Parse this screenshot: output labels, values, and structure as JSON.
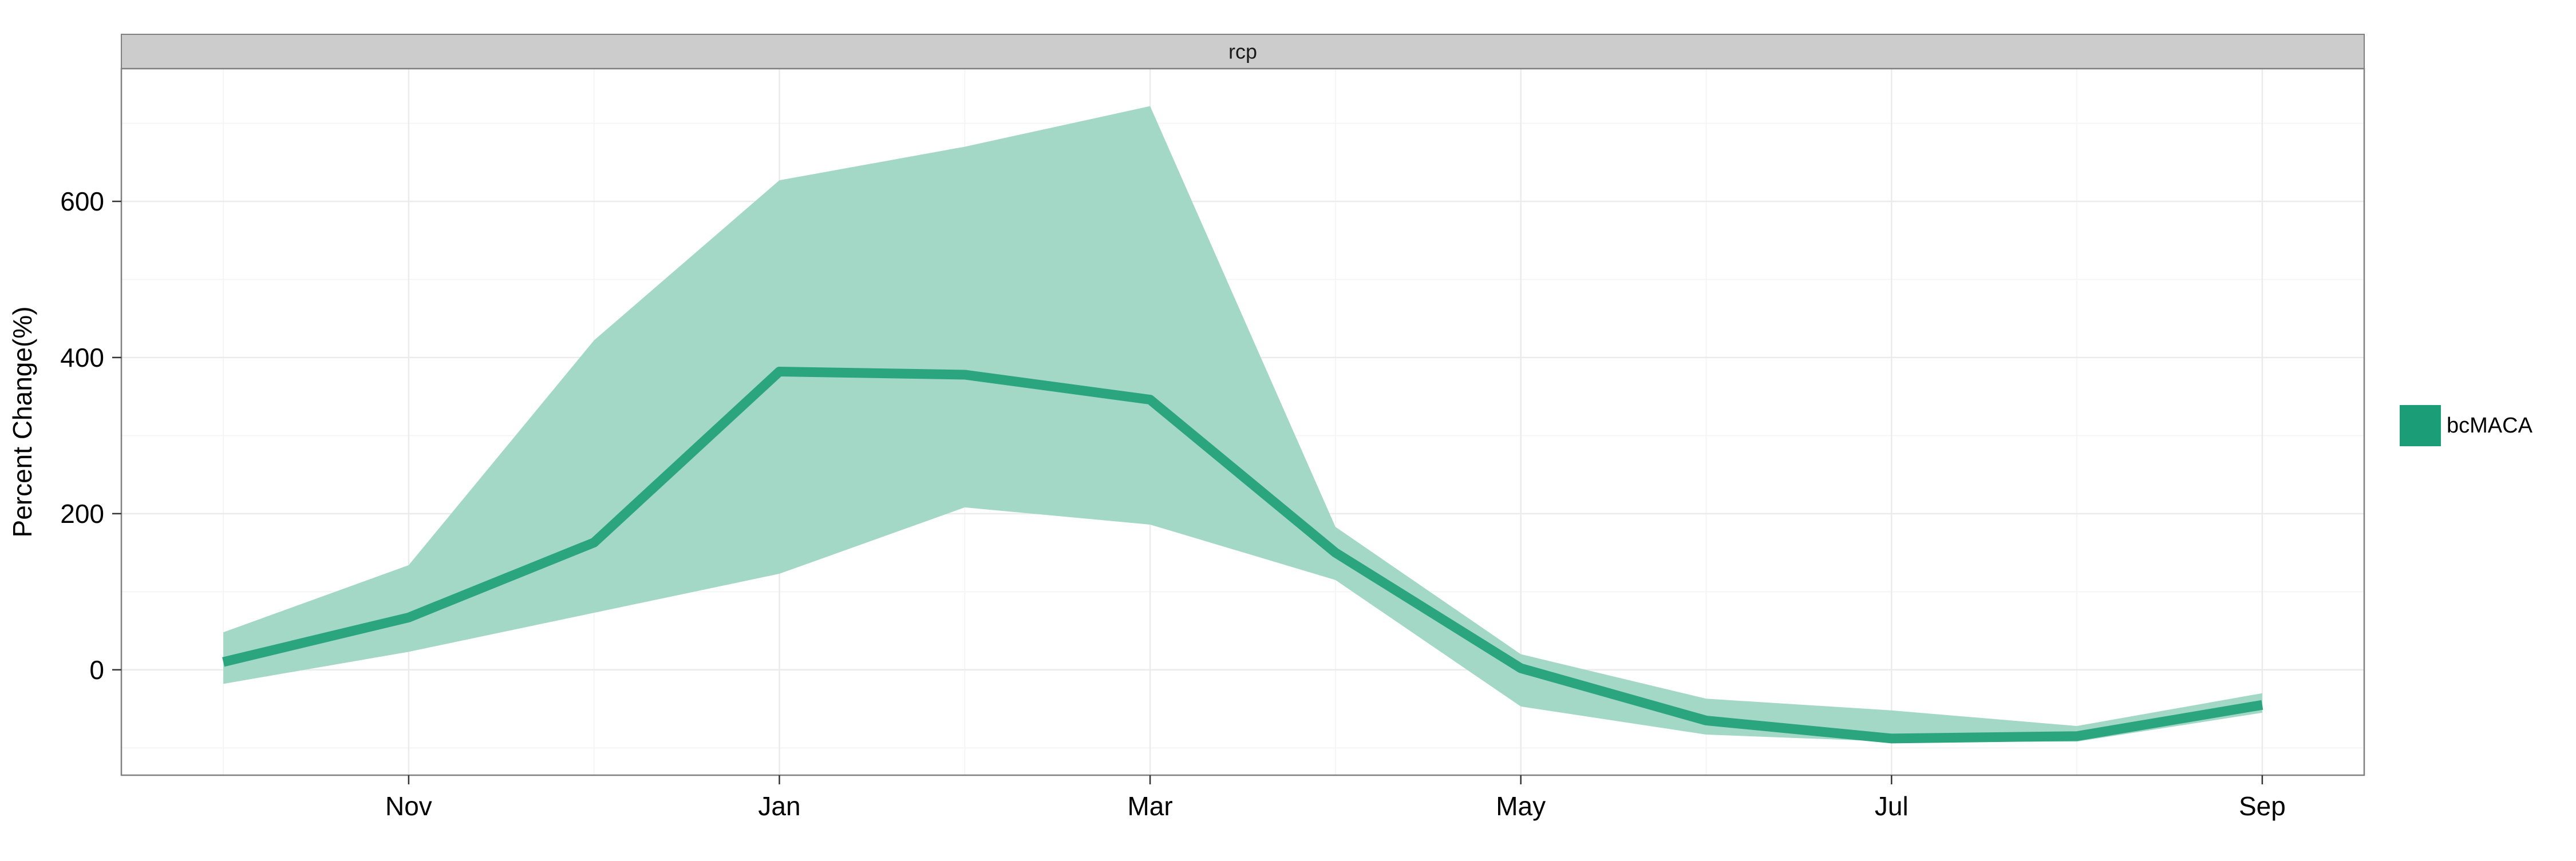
{
  "chart_data": {
    "type": "area",
    "facet_label": "rcp",
    "ylabel": "Percent Change(%)",
    "xlabel": "",
    "x_tick_labels": [
      "Nov",
      "Jan",
      "Mar",
      "May",
      "Jul",
      "Sep"
    ],
    "x_tick_positions": [
      11,
      1,
      3,
      5,
      7,
      9
    ],
    "month_order": [
      10,
      11,
      12,
      1,
      2,
      3,
      4,
      5,
      6,
      7,
      8,
      9
    ],
    "y_ticks": [
      0,
      200,
      400,
      600
    ],
    "ylim": [
      -135,
      770
    ],
    "grid": true,
    "legend_position": "right",
    "colors": {
      "line": "#2ba57e",
      "ribbon": "#a3d8c7",
      "legend_key": "#1b9e77",
      "strip_fill": "#cccccc",
      "panel_border": "#7f7f7f",
      "grid_major": "#ebebeb",
      "grid_minor": "#f5f5f5"
    },
    "series": [
      {
        "name": "bcMACA",
        "months": [
          10,
          11,
          12,
          1,
          2,
          3,
          4,
          5,
          6,
          7,
          8,
          9
        ],
        "values": [
          10,
          67,
          163,
          382,
          378,
          346,
          150,
          2,
          -65,
          -88,
          -85,
          -45
        ],
        "lower": [
          -18,
          23,
          73,
          123,
          208,
          186,
          115,
          -47,
          -83,
          -92,
          -92,
          -55
        ],
        "upper": [
          48,
          134,
          422,
          627,
          670,
          722,
          183,
          20,
          -37,
          -52,
          -72,
          -30
        ]
      }
    ]
  }
}
